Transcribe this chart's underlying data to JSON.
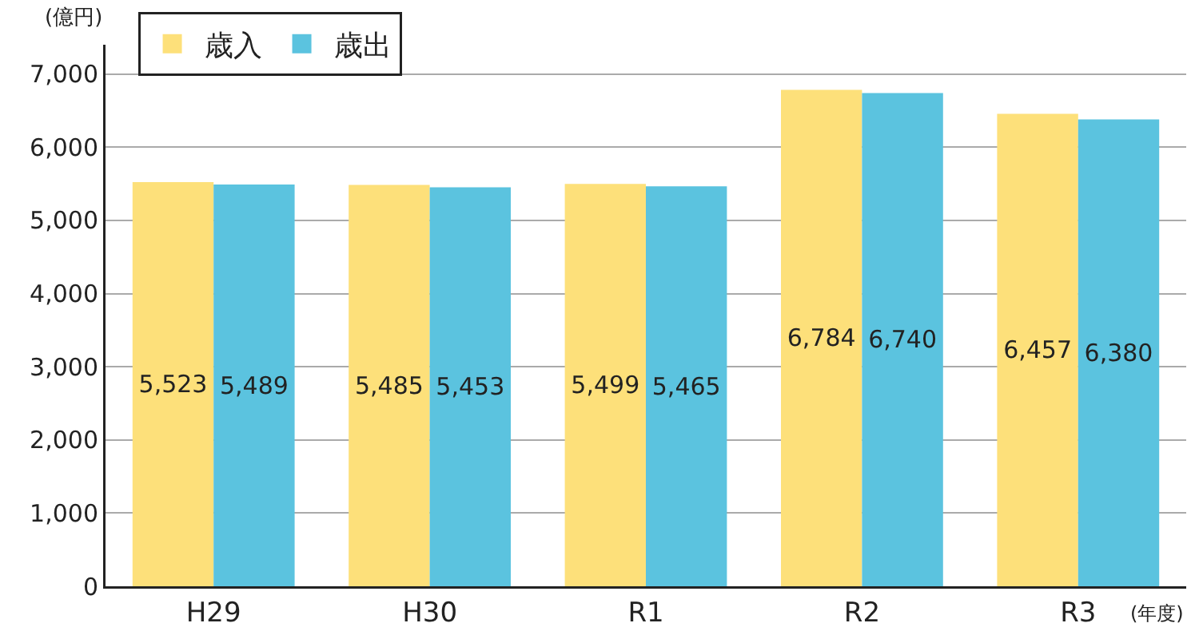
{
  "chart_data": {
    "type": "bar",
    "ylabel": "(億円)",
    "xlabel": "(年度)",
    "categories": [
      "H29",
      "H30",
      "R1",
      "R2",
      "R3"
    ],
    "series": [
      {
        "name": "歳入",
        "color": "#fde07a",
        "values": [
          5523,
          5485,
          5499,
          6784,
          6457
        ],
        "value_labels": [
          "5,523",
          "5,485",
          "5,499",
          "6,784",
          "6,457"
        ]
      },
      {
        "name": "歳出",
        "color": "#5bc3df",
        "values": [
          5489,
          5453,
          5465,
          6740,
          6380
        ],
        "value_labels": [
          "5,489",
          "5,453",
          "5,465",
          "6,740",
          "6,380"
        ]
      }
    ],
    "ylim": [
      0,
      7400
    ],
    "yticks": [
      0,
      {
        "value": 1000,
        "label": "1,000"
      },
      {
        "value": 2000,
        "label": "2,000"
      },
      {
        "value": 3000,
        "label": "3,000"
      },
      {
        "value": 4000,
        "label": "4,000"
      },
      {
        "value": 5000,
        "label": "5,000"
      },
      {
        "value": 6000,
        "label": "6,000"
      },
      {
        "value": 7000,
        "label": "7,000"
      }
    ],
    "grid": "y",
    "legend": "top left"
  }
}
